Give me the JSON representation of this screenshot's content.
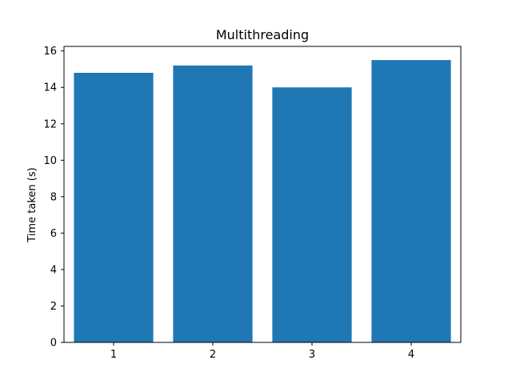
{
  "chart_data": {
    "type": "bar",
    "title": "Multithreading",
    "xlabel": "",
    "ylabel": "Time taken (s)",
    "categories": [
      "1",
      "2",
      "3",
      "4"
    ],
    "values": [
      14.8,
      15.2,
      14.0,
      15.5
    ],
    "ylim": [
      0,
      16.25
    ],
    "yticks": [
      0,
      2,
      4,
      6,
      8,
      10,
      12,
      14,
      16
    ],
    "bar_color": "#1f77b4",
    "grid": false
  }
}
